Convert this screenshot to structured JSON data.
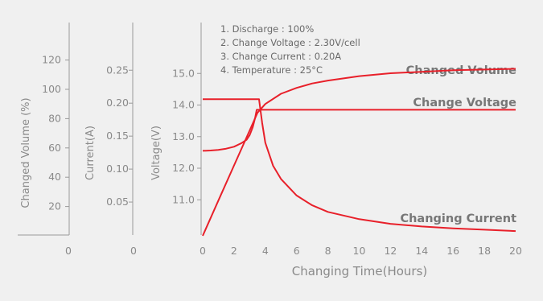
{
  "chart_data": {
    "type": "line",
    "xlabel": "Changing Time(Hours)",
    "xticks": [
      "0",
      "2",
      "4",
      "6",
      "8",
      "10",
      "12",
      "14",
      "16",
      "18",
      "20"
    ],
    "xlim": [
      0,
      20
    ],
    "axes": {
      "volume": {
        "label": "Changed Volume (%)",
        "ticks": [
          "120",
          "100",
          "80",
          "60",
          "40",
          "20"
        ],
        "zero": "0"
      },
      "current": {
        "label": "Current(A)",
        "ticks": [
          "0.25",
          "0.20",
          "0.15",
          "0.10",
          "0.05"
        ],
        "zero": "0"
      },
      "voltage": {
        "label": "Voltage(V)",
        "ticks": [
          "15.0",
          "14.0",
          "13.0",
          "12.0",
          "11.0"
        ],
        "ylim": [
          10.0,
          16.0
        ]
      }
    },
    "notes": [
      "1. Discharge : 100%",
      "2. Change Voltage : 2.30V/cell",
      "3. Change Current : 0.20A",
      "4. Temperature : 25°C"
    ],
    "color": "#e8202a",
    "series": [
      {
        "name": "Changed Volume",
        "axis": "volume",
        "x": [
          0,
          1,
          2,
          3,
          3.5,
          4,
          5,
          6,
          7,
          8,
          10,
          12,
          14,
          16,
          18,
          20
        ],
        "y": [
          0,
          24,
          48,
          72,
          84,
          90,
          97,
          101,
          104,
          106,
          109,
          111,
          112,
          113,
          113.5,
          114
        ]
      },
      {
        "name": "Change Voltage",
        "axis": "voltage",
        "x": [
          0,
          0.5,
          1,
          1.5,
          2,
          2.5,
          2.8,
          3.0,
          3.2,
          3.35,
          3.45,
          3.5,
          4,
          6,
          8,
          10,
          12,
          14,
          16,
          18,
          20
        ],
        "y": [
          12.55,
          12.56,
          12.58,
          12.62,
          12.68,
          12.8,
          12.9,
          13.05,
          13.3,
          13.6,
          13.85,
          13.85,
          13.85,
          13.85,
          13.85,
          13.85,
          13.85,
          13.85,
          13.85,
          13.85,
          13.85
        ]
      },
      {
        "name": "Changing Current",
        "axis": "current",
        "x": [
          0,
          1,
          2,
          3,
          3.6,
          3.8,
          4,
          4.5,
          5,
          6,
          7,
          8,
          10,
          12,
          14,
          16,
          18,
          20
        ],
        "y": [
          0.206,
          0.206,
          0.206,
          0.206,
          0.206,
          0.17,
          0.14,
          0.105,
          0.085,
          0.06,
          0.045,
          0.035,
          0.024,
          0.017,
          0.013,
          0.01,
          0.008,
          0.006
        ]
      }
    ]
  }
}
